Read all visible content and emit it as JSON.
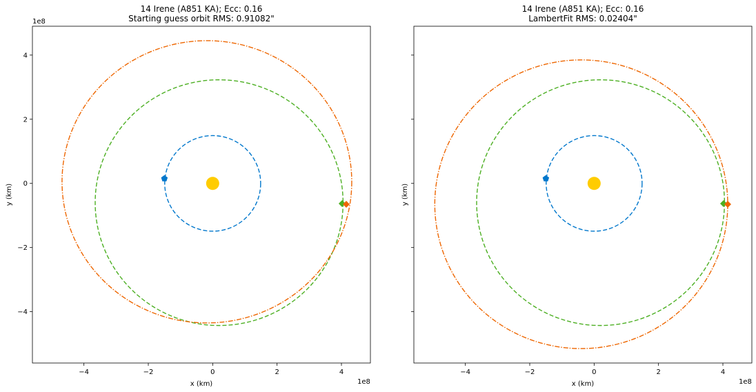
{
  "chart_data": [
    {
      "type": "scatter",
      "title": "14 Irene (A851 KA); Ecc: 0.16",
      "subtitle": "Starting guess orbit RMS: 0.91082\"",
      "xlabel": "x (km)",
      "ylabel": "y (km)",
      "offset_text_x": "1e8",
      "offset_text_y": "1e8",
      "xlim": [
        -5.6,
        4.9
      ],
      "ylim": [
        -5.6,
        4.9
      ],
      "xticks": [
        -4,
        -2,
        0,
        2,
        4
      ],
      "yticks": [
        -4,
        -2,
        0,
        2,
        4
      ],
      "xtick_labels": [
        "−4",
        "−2",
        "0",
        "2",
        "4"
      ],
      "ytick_labels": [
        "−4",
        "−2",
        "0",
        "2",
        "4"
      ],
      "show_ytick_labels": true,
      "show_ylabel": true,
      "sun": {
        "x": 0,
        "y": 0,
        "color": "#FFCC00"
      },
      "orbits": [
        {
          "color": "#0077CC",
          "center": [
            0,
            0
          ],
          "radii": [
            1.49,
            1.49
          ],
          "tilt_deg": 0,
          "dash": "dashed"
        },
        {
          "color": "#4CAF22",
          "center": [
            0.2,
            -0.6
          ],
          "radii": [
            3.85,
            3.83
          ],
          "tilt_deg": 0,
          "dash": "dashed"
        },
        {
          "color": "#EE6600",
          "center": [
            -0.18,
            0.05
          ],
          "radii": [
            4.5,
            4.4
          ],
          "tilt_deg": 0,
          "dash": "dashdot"
        }
      ],
      "markers": [
        {
          "x": -1.5,
          "y": 0.15,
          "color": "#0077CC",
          "shape": "pentagon"
        },
        {
          "x": 4.02,
          "y": -0.63,
          "color": "#4CAF22",
          "shape": "diamond"
        },
        {
          "x": 4.15,
          "y": -0.65,
          "color": "#EE6600",
          "shape": "diamond"
        }
      ]
    },
    {
      "type": "scatter",
      "title": "14 Irene (A851 KA); Ecc: 0.16",
      "subtitle": "LambertFit RMS: 0.02404\"",
      "xlabel": "x (km)",
      "ylabel": "y (km)",
      "offset_text_x": "1e8",
      "offset_text_y": "",
      "xlim": [
        -5.6,
        4.9
      ],
      "ylim": [
        -5.6,
        4.9
      ],
      "xticks": [
        -4,
        -2,
        0,
        2,
        4
      ],
      "yticks": [
        -4,
        -2,
        0,
        2,
        4
      ],
      "xtick_labels": [
        "−4",
        "−2",
        "0",
        "2",
        "4"
      ],
      "ytick_labels": [
        "",
        "",
        "",
        "",
        ""
      ],
      "show_ytick_labels": false,
      "show_ylabel": true,
      "sun": {
        "x": 0,
        "y": 0,
        "color": "#FFCC00"
      },
      "orbits": [
        {
          "color": "#0077CC",
          "center": [
            0,
            0
          ],
          "radii": [
            1.49,
            1.49
          ],
          "tilt_deg": 0,
          "dash": "dashed"
        },
        {
          "color": "#4CAF22",
          "center": [
            0.2,
            -0.6
          ],
          "radii": [
            3.85,
            3.83
          ],
          "tilt_deg": 0,
          "dash": "dashed"
        },
        {
          "color": "#EE6600",
          "center": [
            -0.4,
            -0.65
          ],
          "radii": [
            4.55,
            4.5
          ],
          "tilt_deg": 0,
          "dash": "dashdot"
        }
      ],
      "markers": [
        {
          "x": -1.5,
          "y": 0.15,
          "color": "#0077CC",
          "shape": "pentagon"
        },
        {
          "x": 4.02,
          "y": -0.63,
          "color": "#4CAF22",
          "shape": "diamond"
        },
        {
          "x": 4.15,
          "y": -0.65,
          "color": "#EE6600",
          "shape": "diamond"
        }
      ]
    }
  ]
}
